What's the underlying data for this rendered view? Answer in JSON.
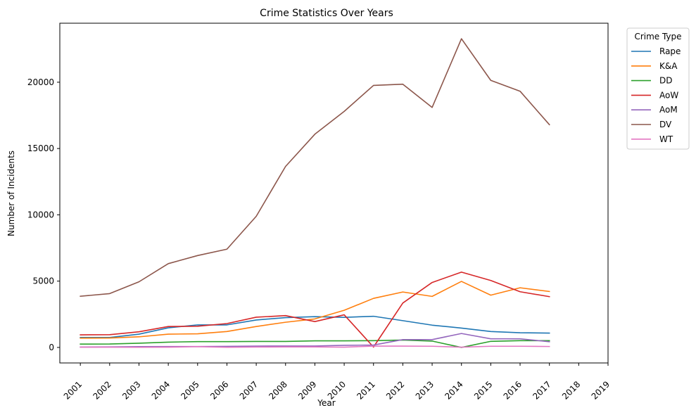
{
  "chart_data": {
    "type": "line",
    "title": "Crime Statistics Over Years",
    "xlabel": "Year",
    "ylabel": "Number of Incidents",
    "x_ticks": [
      "2001",
      "2002",
      "2003",
      "2004",
      "2005",
      "2006",
      "2007",
      "2008",
      "2009",
      "2010",
      "2011",
      "2012",
      "2013",
      "2014",
      "2015",
      "2016",
      "2017",
      "2018",
      "2019"
    ],
    "y_ticks": [
      0,
      5000,
      10000,
      15000,
      20000
    ],
    "xlim": [
      2000.3,
      2019.0
    ],
    "ylim": [
      -1170,
      24450
    ],
    "grid": false,
    "legend": {
      "title": "Crime Type",
      "placement": "outside-top-right"
    },
    "x": [
      2001,
      2002,
      2003,
      2004,
      2005,
      2006,
      2007,
      2008,
      2009,
      2010,
      2011,
      2012,
      2013,
      2014,
      2015,
      2016,
      2017
    ],
    "series": [
      {
        "name": "Rape",
        "color": "#1f77b4",
        "values": [
          750,
          750,
          1000,
          1480,
          1700,
          1700,
          2070,
          2250,
          2320,
          2270,
          2350,
          2020,
          1680,
          1460,
          1200,
          1110,
          1080
        ]
      },
      {
        "name": "K&A",
        "color": "#ff7f0e",
        "values": [
          700,
          710,
          800,
          1000,
          1030,
          1200,
          1580,
          1900,
          2150,
          2800,
          3700,
          4180,
          3850,
          4980,
          3940,
          4500,
          4220
        ]
      },
      {
        "name": "DD",
        "color": "#2ca02c",
        "values": [
          250,
          260,
          320,
          400,
          440,
          440,
          450,
          450,
          500,
          500,
          510,
          560,
          480,
          0,
          460,
          510,
          510
        ]
      },
      {
        "name": "AoW",
        "color": "#d62728",
        "values": [
          950,
          960,
          1180,
          1580,
          1600,
          1800,
          2280,
          2400,
          1950,
          2460,
          30,
          3350,
          4900,
          5680,
          5050,
          4200,
          3830
        ]
      },
      {
        "name": "AoM",
        "color": "#9467bd",
        "values": [
          30,
          40,
          60,
          70,
          70,
          80,
          100,
          110,
          110,
          160,
          180,
          590,
          590,
          1050,
          650,
          650,
          430
        ]
      },
      {
        "name": "DV",
        "color": "#8c564b",
        "values": [
          3860,
          4060,
          4950,
          6320,
          6930,
          7410,
          9890,
          13650,
          16080,
          17800,
          19760,
          19850,
          18100,
          23280,
          20140,
          19320,
          16800
        ]
      },
      {
        "name": "WT",
        "color": "#e377c2",
        "values": [
          20,
          20,
          10,
          20,
          60,
          10,
          30,
          40,
          40,
          20,
          100,
          100,
          90,
          20,
          90,
          90,
          70
        ]
      }
    ]
  }
}
